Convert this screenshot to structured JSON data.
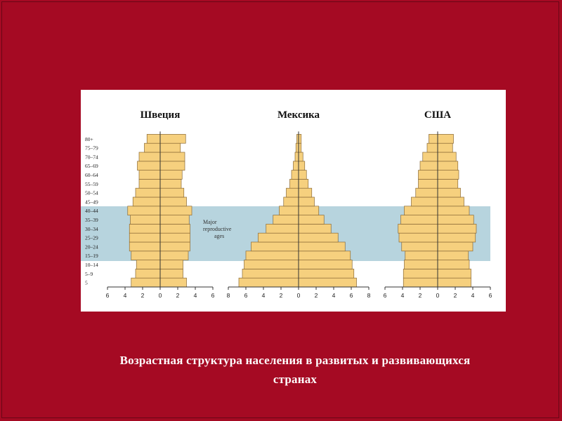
{
  "caption": {
    "line1": "Возрастная структура  населения  в развитых и развивающихся",
    "line2": "странах"
  },
  "annotation": {
    "lines": [
      "Major",
      "reproductive",
      "ages"
    ]
  },
  "colors": {
    "background": "#a50a23",
    "bar_fill": "#f6d07e",
    "band_fill": "#b7d4de",
    "bar_stroke": "#8a6a36",
    "axis": "#333333"
  },
  "chart_data": [
    {
      "type": "bar",
      "orientation": "horizontal-pyramid",
      "title": "Швеция",
      "age_groups": [
        "5",
        "5–9",
        "10–14",
        "15–19",
        "20–24",
        "25–29",
        "30–34",
        "35–39",
        "40–44",
        "45–49",
        "50–54",
        "55–59",
        "60–64",
        "65–69",
        "70–74",
        "75–79",
        "80+"
      ],
      "age_labels": [
        "5",
        "5–9",
        "10–14",
        "15–19",
        "20–24",
        "25–29",
        "30–34",
        "35–39",
        "40–44",
        "45–49",
        "50–54",
        "55–59",
        "60–64",
        "65–69",
        "70–74",
        "75–79",
        "80+"
      ],
      "series": [
        {
          "values": [
            3.3,
            2.8,
            2.7,
            3.3,
            3.5,
            3.5,
            3.5,
            3.4,
            3.7,
            3.1,
            2.8,
            2.4,
            2.4,
            2.6,
            2.4,
            1.8,
            1.5
          ]
        },
        {
          "values": [
            3.0,
            2.6,
            2.6,
            3.2,
            3.4,
            3.4,
            3.4,
            3.3,
            3.6,
            3.0,
            2.7,
            2.4,
            2.5,
            2.8,
            2.8,
            2.3,
            2.9
          ]
        }
      ],
      "xlim": [
        -6,
        6
      ],
      "xticks": [
        "6",
        "4",
        "2",
        "0",
        "2",
        "4",
        "6"
      ]
    },
    {
      "type": "bar",
      "orientation": "horizontal-pyramid",
      "title": "Мексика",
      "age_groups": [
        "5",
        "5–9",
        "10–14",
        "15–19",
        "20–24",
        "25–29",
        "30–34",
        "35–39",
        "40–44",
        "45–49",
        "50–54",
        "55–59",
        "60–64",
        "65–69",
        "70–74",
        "75–79",
        "80+"
      ],
      "series": [
        {
          "values": [
            6.8,
            6.4,
            6.2,
            6.0,
            5.4,
            4.6,
            3.7,
            2.9,
            2.2,
            1.7,
            1.4,
            1.0,
            0.8,
            0.6,
            0.4,
            0.3,
            0.2
          ]
        },
        {
          "values": [
            6.6,
            6.3,
            6.1,
            5.9,
            5.3,
            4.5,
            3.7,
            2.9,
            2.3,
            1.8,
            1.5,
            1.1,
            0.9,
            0.7,
            0.5,
            0.3,
            0.3
          ]
        }
      ],
      "xlim": [
        -8,
        8
      ],
      "xticks": [
        "8",
        "6",
        "4",
        "2",
        "0",
        "2",
        "4",
        "6",
        "8"
      ]
    },
    {
      "type": "bar",
      "orientation": "horizontal-pyramid",
      "title": "США",
      "age_groups": [
        "5",
        "5–9",
        "10–14",
        "15–19",
        "20–24",
        "25–29",
        "30–34",
        "35–39",
        "40–44",
        "45–49",
        "50–54",
        "55–59",
        "60–64",
        "65–69",
        "70–74",
        "75–79",
        "80+"
      ],
      "series": [
        {
          "values": [
            3.9,
            3.9,
            3.8,
            3.7,
            4.1,
            4.4,
            4.5,
            4.2,
            3.8,
            3.0,
            2.5,
            2.2,
            2.2,
            2.0,
            1.7,
            1.2,
            1.0
          ]
        },
        {
          "values": [
            3.8,
            3.8,
            3.6,
            3.5,
            4.0,
            4.3,
            4.4,
            4.1,
            3.6,
            3.0,
            2.6,
            2.3,
            2.4,
            2.3,
            2.1,
            1.7,
            1.8
          ]
        }
      ],
      "xlim": [
        -6,
        6
      ],
      "xticks": [
        "6",
        "4",
        "2",
        "0",
        "2",
        "4",
        "6"
      ]
    }
  ]
}
